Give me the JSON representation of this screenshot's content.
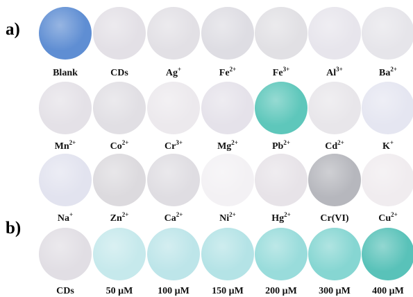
{
  "panels": {
    "a": {
      "label": "a)"
    },
    "b": {
      "label": "b)"
    }
  },
  "rows": [
    {
      "items": [
        {
          "base": "Blank",
          "charge": "",
          "color": "#5f8ed3"
        },
        {
          "base": "CDs",
          "charge": "",
          "color": "#e3e0e6"
        },
        {
          "base": "Ag",
          "charge": "+",
          "color": "#e2e0e5"
        },
        {
          "base": "Fe",
          "charge": "2+",
          "color": "#dedde3"
        },
        {
          "base": "Fe",
          "charge": "3+",
          "color": "#e1e0e4"
        },
        {
          "base": "Al",
          "charge": "3+",
          "color": "#e7e5ec"
        },
        {
          "base": "Ba",
          "charge": "2+",
          "color": "#e6e5ea"
        }
      ]
    },
    {
      "items": [
        {
          "base": "Mn",
          "charge": "2+",
          "color": "#e4e1e7"
        },
        {
          "base": "Co",
          "charge": "2+",
          "color": "#e1dfe4"
        },
        {
          "base": "Cr",
          "charge": "3+",
          "color": "#ece9ed"
        },
        {
          "base": "Mg",
          "charge": "2+",
          "color": "#e5e2ea"
        },
        {
          "base": "Pb",
          "charge": "2+",
          "color": "#5ec7bb"
        },
        {
          "base": "Cd",
          "charge": "2+",
          "color": "#e8e6ea"
        },
        {
          "base": "K",
          "charge": "+",
          "color": "#e5e6f1"
        }
      ]
    },
    {
      "items": [
        {
          "base": "Na",
          "charge": "+",
          "color": "#e2e3ef"
        },
        {
          "base": "Zn",
          "charge": "2+",
          "color": "#dcdade"
        },
        {
          "base": "Ca",
          "charge": "2+",
          "color": "#dfdde2"
        },
        {
          "base": "Ni",
          "charge": "2+",
          "color": "#f3f1f4"
        },
        {
          "base": "Hg",
          "charge": "2+",
          "color": "#e7e3e8"
        },
        {
          "base": "Cr(VI)",
          "charge": "",
          "color": "#b6b7bd"
        },
        {
          "base": "Cu",
          "charge": "2+",
          "color": "#f0ecef"
        }
      ]
    },
    {
      "items": [
        {
          "base": "CDs",
          "charge": "",
          "color": "#e1dee4"
        },
        {
          "base": "50 μM",
          "charge": "",
          "color": "#c6e9ec"
        },
        {
          "base": "100 μM",
          "charge": "",
          "color": "#bde5e9"
        },
        {
          "base": "150 μM",
          "charge": "",
          "color": "#b4e3e6"
        },
        {
          "base": "200 μM",
          "charge": "",
          "color": "#99dcdb"
        },
        {
          "base": "300 μM",
          "charge": "",
          "color": "#86d6d2"
        },
        {
          "base": "400 μM",
          "charge": "",
          "color": "#59c2b9"
        }
      ]
    }
  ]
}
